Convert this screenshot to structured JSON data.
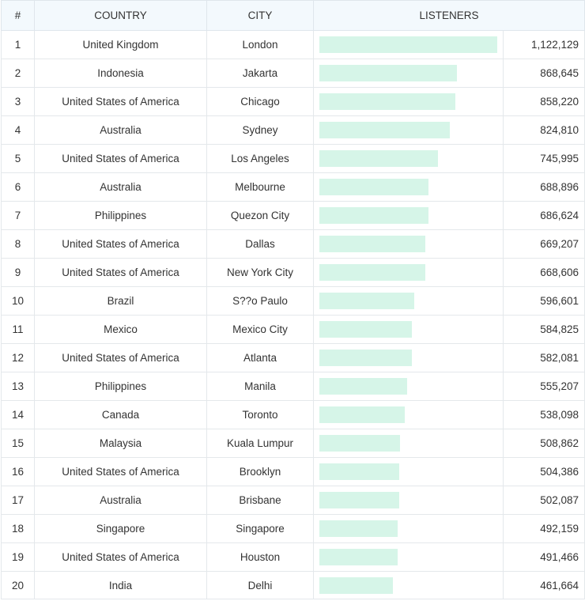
{
  "table": {
    "headers": {
      "rank": "#",
      "country": "COUNTRY",
      "city": "CITY",
      "listeners": "LISTENERS"
    },
    "bar_color": "#d6f5e8",
    "header_bg": "#f3f9fd",
    "max_listeners": 1122129,
    "rows": [
      {
        "rank": "1",
        "country": "United Kingdom",
        "city": "London",
        "listeners": 1122129,
        "listeners_text": "1,122,129"
      },
      {
        "rank": "2",
        "country": "Indonesia",
        "city": "Jakarta",
        "listeners": 868645,
        "listeners_text": "868,645"
      },
      {
        "rank": "3",
        "country": "United States of America",
        "city": "Chicago",
        "listeners": 858220,
        "listeners_text": "858,220"
      },
      {
        "rank": "4",
        "country": "Australia",
        "city": "Sydney",
        "listeners": 824810,
        "listeners_text": "824,810"
      },
      {
        "rank": "5",
        "country": "United States of America",
        "city": "Los Angeles",
        "listeners": 745995,
        "listeners_text": "745,995"
      },
      {
        "rank": "6",
        "country": "Australia",
        "city": "Melbourne",
        "listeners": 688896,
        "listeners_text": "688,896"
      },
      {
        "rank": "7",
        "country": "Philippines",
        "city": "Quezon City",
        "listeners": 686624,
        "listeners_text": "686,624"
      },
      {
        "rank": "8",
        "country": "United States of America",
        "city": "Dallas",
        "listeners": 669207,
        "listeners_text": "669,207"
      },
      {
        "rank": "9",
        "country": "United States of America",
        "city": "New York City",
        "listeners": 668606,
        "listeners_text": "668,606"
      },
      {
        "rank": "10",
        "country": "Brazil",
        "city": "S??o Paulo",
        "listeners": 596601,
        "listeners_text": "596,601"
      },
      {
        "rank": "11",
        "country": "Mexico",
        "city": "Mexico City",
        "listeners": 584825,
        "listeners_text": "584,825"
      },
      {
        "rank": "12",
        "country": "United States of America",
        "city": "Atlanta",
        "listeners": 582081,
        "listeners_text": "582,081"
      },
      {
        "rank": "13",
        "country": "Philippines",
        "city": "Manila",
        "listeners": 555207,
        "listeners_text": "555,207"
      },
      {
        "rank": "14",
        "country": "Canada",
        "city": "Toronto",
        "listeners": 538098,
        "listeners_text": "538,098"
      },
      {
        "rank": "15",
        "country": "Malaysia",
        "city": "Kuala Lumpur",
        "listeners": 508862,
        "listeners_text": "508,862"
      },
      {
        "rank": "16",
        "country": "United States of America",
        "city": "Brooklyn",
        "listeners": 504386,
        "listeners_text": "504,386"
      },
      {
        "rank": "17",
        "country": "Australia",
        "city": "Brisbane",
        "listeners": 502087,
        "listeners_text": "502,087"
      },
      {
        "rank": "18",
        "country": "Singapore",
        "city": "Singapore",
        "listeners": 492159,
        "listeners_text": "492,159"
      },
      {
        "rank": "19",
        "country": "United States of America",
        "city": "Houston",
        "listeners": 491466,
        "listeners_text": "491,466"
      },
      {
        "rank": "20",
        "country": "India",
        "city": "Delhi",
        "listeners": 461664,
        "listeners_text": "461,664"
      }
    ]
  }
}
